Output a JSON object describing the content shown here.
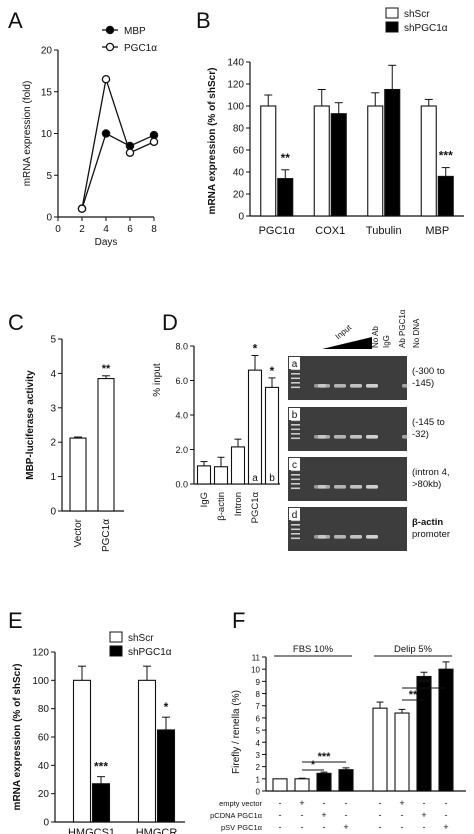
{
  "colors": {
    "ink": "#111111",
    "gel_bg": "#3d3d3d",
    "band": "#e6e6e6",
    "white": "#ffffff",
    "black": "#000000"
  },
  "chart_data": [
    {
      "panel": "A",
      "type": "line",
      "xlabel": "Days",
      "ylabel": "mRNA expression (fold)",
      "xlim": [
        0,
        8
      ],
      "ylim": [
        0,
        20
      ],
      "xticks": [
        "0",
        "2",
        "4",
        "6",
        "8"
      ],
      "yticks": [
        "0",
        "5",
        "10",
        "15",
        "20"
      ],
      "x": [
        2,
        4,
        6,
        8
      ],
      "series": [
        {
          "name": "MBP",
          "values": [
            1.0,
            10.0,
            8.5,
            9.8
          ],
          "marker": "filled"
        },
        {
          "name": "PGC1α",
          "values": [
            1.0,
            16.5,
            7.7,
            9.0
          ],
          "marker": "open"
        }
      ],
      "legend": "top-right"
    },
    {
      "panel": "B",
      "type": "bar",
      "ylabel": "mRNA expression (% of shScr)",
      "ylim": [
        0,
        140
      ],
      "yticks": [
        "0",
        "20",
        "40",
        "60",
        "80",
        "100",
        "120",
        "140"
      ],
      "categories": [
        "PGC1α",
        "COX1",
        "Tubulin",
        "MBP"
      ],
      "series": [
        {
          "name": "shScr",
          "fill": "white",
          "values": [
            100,
            100,
            100,
            100
          ],
          "errors": [
            10,
            15,
            12,
            6
          ]
        },
        {
          "name": "shPGC1α",
          "fill": "black",
          "values": [
            34,
            93,
            115,
            36
          ],
          "errors": [
            8,
            10,
            22,
            8
          ]
        }
      ],
      "annotations": [
        {
          "category": "PGC1α",
          "text": "**"
        },
        {
          "category": "MBP",
          "text": "***"
        }
      ],
      "legend": "top-right"
    },
    {
      "panel": "C",
      "type": "bar",
      "ylabel": "MBP-luciferase activity",
      "ylim": [
        0,
        5
      ],
      "yticks": [
        "0",
        "1",
        "2",
        "3",
        "4",
        "5"
      ],
      "categories": [
        "Vector",
        "PGC1α"
      ],
      "values": [
        2.12,
        3.85
      ],
      "errors": [
        0.03,
        0.08
      ],
      "annotations": [
        {
          "category": "PGC1α",
          "text": "**"
        }
      ]
    },
    {
      "panel": "D",
      "type": "bar",
      "ylabel": "% input",
      "ylim": [
        0,
        8
      ],
      "yticks": [
        "0.0",
        "2.0",
        "4.0",
        "6.0",
        "8.0"
      ],
      "categories": [
        "IgG",
        "β-actin",
        "Intron",
        "PGC1α",
        ""
      ],
      "values": [
        1.05,
        1.0,
        2.15,
        6.6,
        5.6
      ],
      "errors": [
        0.25,
        0.55,
        0.45,
        0.85,
        0.55
      ],
      "bar_labels": [
        "",
        "",
        "",
        "a",
        "b"
      ],
      "annotations": [
        {
          "index": 3,
          "text": "*"
        },
        {
          "index": 4,
          "text": "*"
        }
      ]
    },
    {
      "panel": "E",
      "type": "bar",
      "ylabel": "mRNA expression (% of shScr)",
      "ylim": [
        0,
        120
      ],
      "yticks": [
        "0",
        "20",
        "40",
        "60",
        "80",
        "100",
        "120"
      ],
      "categories": [
        "HMGCS1",
        "HMGCR"
      ],
      "series": [
        {
          "name": "shScr",
          "fill": "white",
          "values": [
            100,
            100
          ],
          "errors": [
            10,
            10
          ]
        },
        {
          "name": "shPGC1α",
          "fill": "black",
          "values": [
            27,
            65
          ],
          "errors": [
            5,
            9
          ]
        }
      ],
      "annotations": [
        {
          "category": "HMGCS1",
          "text": "***"
        },
        {
          "category": "HMGCR",
          "text": "*"
        }
      ],
      "legend": "top-left"
    },
    {
      "panel": "F",
      "type": "bar",
      "ylabel": "Firefly / renella (%)",
      "ylim": [
        0,
        11
      ],
      "yticks": [
        "0",
        "1",
        "2",
        "3",
        "4",
        "5",
        "6",
        "7",
        "8",
        "9",
        "10",
        "11"
      ],
      "groups": [
        "FBS 10%",
        "Delip 5%"
      ],
      "rows": [
        {
          "label": "empty vector",
          "signs": [
            "-",
            "+",
            "-",
            "-",
            "-",
            "+",
            "-",
            "-"
          ]
        },
        {
          "label": "pCDNA PGC1α",
          "signs": [
            "-",
            "-",
            "+",
            "-",
            "-",
            "-",
            "+",
            "-"
          ]
        },
        {
          "label": "pSV PGC1α",
          "signs": [
            "-",
            "-",
            "-",
            "+",
            "-",
            "-",
            "-",
            "+"
          ]
        }
      ],
      "values": [
        1.0,
        1.0,
        1.45,
        1.75,
        6.8,
        6.4,
        9.4,
        10.0
      ],
      "errors": [
        0.0,
        0.05,
        0.1,
        0.15,
        0.5,
        0.3,
        0.35,
        0.6
      ],
      "fills": [
        "white",
        "white",
        "black",
        "black",
        "white",
        "white",
        "black",
        "black"
      ],
      "annotations": [
        {
          "from": 1,
          "to": 2,
          "text": "*"
        },
        {
          "from": 1,
          "to": 3,
          "text": "***"
        },
        {
          "from": 5,
          "to": 6,
          "text": "**"
        },
        {
          "from": 5,
          "to": 7,
          "text": "***"
        }
      ]
    }
  ],
  "gel": {
    "header_input": "Input",
    "header_labels": [
      "No Ab",
      "IgG",
      "Ab PGC1α",
      "No DNA"
    ],
    "rows": [
      {
        "letter": "a",
        "label_lines": [
          "(-300 to",
          "-145)"
        ]
      },
      {
        "letter": "b",
        "label_lines": [
          "(-145 to",
          "-32)"
        ]
      },
      {
        "letter": "c",
        "label_lines": [
          "(intron 4,",
          ">80kb)"
        ]
      },
      {
        "letter": "d",
        "label_lines": [
          "β-actin",
          "promoter"
        ]
      }
    ]
  }
}
